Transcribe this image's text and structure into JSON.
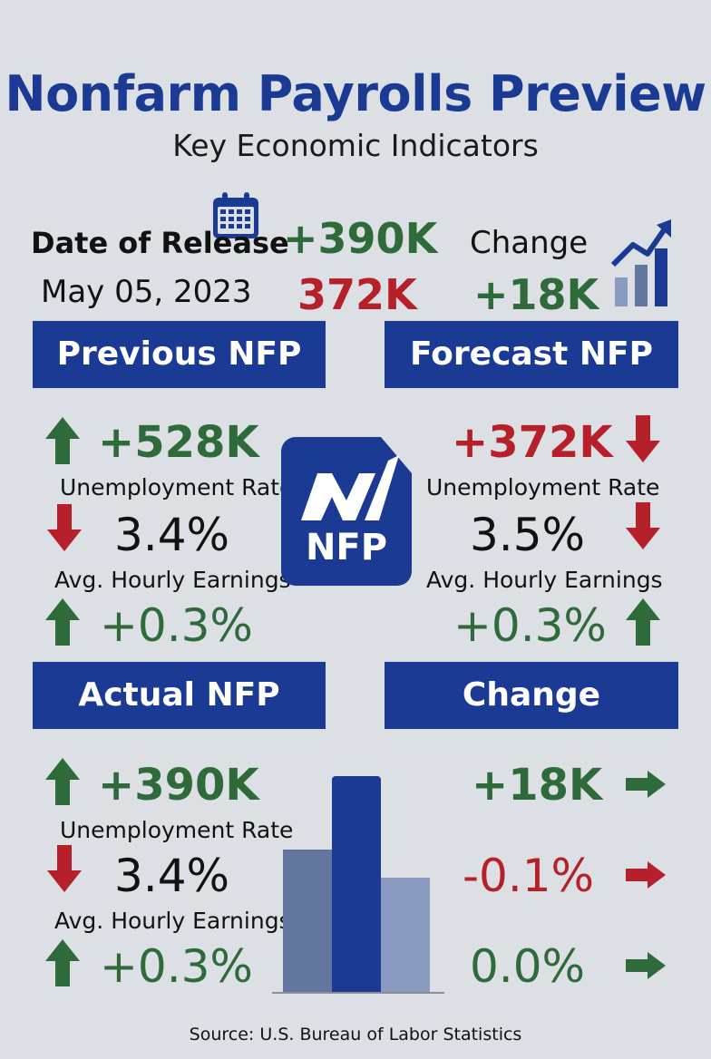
{
  "header": {
    "title": "Nonfarm Payrolls Preview",
    "subtitle": "Key Economic Indicators"
  },
  "top": {
    "date_label": "Date of Release",
    "date_value": "May 05, 2023",
    "actual_value": "+390K",
    "forecast_value": "372K",
    "change_label": "Change",
    "change_value": "+18K"
  },
  "sections": {
    "previous": {
      "heading": "Previous NFP",
      "nfp": "+528K",
      "nfp_trend": "up",
      "unemployment_label": "Unemployment Rate",
      "unemployment_value": "3.4%",
      "unemployment_trend": "down",
      "earnings_label": "Avg. Hourly Earnings",
      "earnings_value": "+0.3%",
      "earnings_trend": "up"
    },
    "forecast": {
      "heading": "Forecast NFP",
      "nfp": "+372K",
      "nfp_trend": "down",
      "unemployment_label": "Unemployment Rate",
      "unemployment_value": "3.5%",
      "unemployment_trend": "down",
      "earnings_label": "Avg. Hourly Earnings",
      "earnings_value": "+0.3%",
      "earnings_trend": "up"
    },
    "actual": {
      "heading": "Actual NFP",
      "nfp": "+390K",
      "nfp_trend": "up",
      "unemployment_label": "Unemployment Rate",
      "unemployment_value": "3.4%",
      "unemployment_trend": "down",
      "earnings_label": "Avg. Hourly Earnings",
      "earnings_value": "+0.3%",
      "earnings_trend": "up"
    },
    "change": {
      "heading": "Change",
      "nfp": "+18K",
      "unemployment": "-0.1%",
      "earnings": "0.0%"
    }
  },
  "logo": {
    "text": "NFP",
    "icon": "nfp-logo"
  },
  "icons": {
    "calendar": "calendar-icon",
    "growth": "growth-chart-icon"
  },
  "colors": {
    "brand_blue": "#1b3a93",
    "positive_green": "#2f6a3b",
    "negative_red": "#b5202a",
    "background": "#dcdfe3"
  },
  "bar_graphic": {
    "relative_heights": [
      0.66,
      1.0,
      0.53
    ],
    "colors": [
      "#6276a0",
      "#1b3a93",
      "#8a9ac0"
    ]
  },
  "footer": {
    "source": "Source: U.S. Bureau of Labor Statistics"
  }
}
